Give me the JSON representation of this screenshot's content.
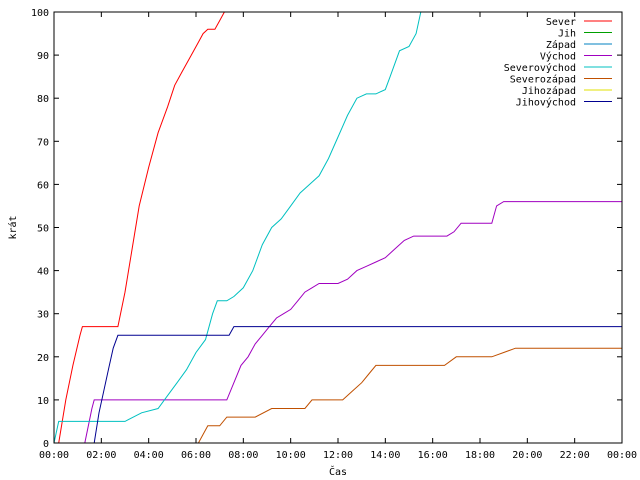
{
  "chart_data": {
    "type": "line",
    "title": "",
    "xlabel": "Čas",
    "ylabel": "krát",
    "xlim": [
      0,
      24
    ],
    "ylim": [
      0,
      100
    ],
    "x_ticks": [
      0,
      2,
      4,
      6,
      8,
      10,
      12,
      14,
      16,
      18,
      20,
      22,
      24
    ],
    "x_tick_labels": [
      "00:00",
      "02:00",
      "04:00",
      "06:00",
      "08:00",
      "10:00",
      "12:00",
      "14:00",
      "16:00",
      "18:00",
      "20:00",
      "22:00",
      "00:00"
    ],
    "y_ticks": [
      0,
      10,
      20,
      30,
      40,
      50,
      60,
      70,
      80,
      90,
      100
    ],
    "y_tick_labels": [
      "0",
      "10",
      "20",
      "30",
      "40",
      "50",
      "60",
      "70",
      "80",
      "90",
      "100"
    ],
    "legend_position": "top-right",
    "grid": false,
    "series": [
      {
        "name": "Sever",
        "color": "#ff0000",
        "x": [
          0.2,
          0.5,
          0.8,
          1.1,
          1.2,
          2.7,
          3.0,
          3.3,
          3.6,
          4.0,
          4.4,
          4.8,
          5.1,
          5.4,
          5.8,
          6.1,
          6.3,
          6.5,
          6.8,
          7.0,
          7.2
        ],
        "y": [
          0,
          10,
          18,
          25,
          27,
          27,
          35,
          45,
          55,
          64,
          72,
          78,
          83,
          86,
          90,
          93,
          95,
          96,
          96,
          98,
          100
        ]
      },
      {
        "name": "Jih",
        "color": "#00a000",
        "x": [],
        "y": []
      },
      {
        "name": "Západ",
        "color": "#0080c0",
        "x": [],
        "y": []
      },
      {
        "name": "Východ",
        "color": "#a000c0",
        "x": [
          1.3,
          1.6,
          1.7,
          3.0,
          4.0,
          7.3,
          7.6,
          7.9,
          8.2,
          8.5,
          8.8,
          9.1,
          9.4,
          9.7,
          10.0,
          10.3,
          10.6,
          10.9,
          11.2,
          12.0,
          12.4,
          12.8,
          13.2,
          13.6,
          14.0,
          14.4,
          14.8,
          15.2,
          16.0,
          16.6,
          16.9,
          17.2,
          18.0,
          18.5,
          18.7,
          19.0,
          24.0
        ],
        "y": [
          0,
          8,
          10,
          10,
          10,
          10,
          14,
          18,
          20,
          23,
          25,
          27,
          29,
          30,
          31,
          33,
          35,
          36,
          37,
          37,
          38,
          40,
          41,
          42,
          43,
          45,
          47,
          48,
          48,
          48,
          49,
          51,
          51,
          51,
          55,
          56,
          56
        ]
      },
      {
        "name": "Severovýchod",
        "color": "#00c0c0",
        "x": [
          0,
          0.2,
          1.0,
          2.0,
          3.0,
          3.7,
          4.4,
          4.8,
          5.2,
          5.6,
          6.0,
          6.4,
          6.7,
          6.9,
          7.3,
          7.6,
          8.0,
          8.4,
          8.8,
          9.2,
          9.6,
          10.0,
          10.4,
          10.8,
          11.2,
          11.6,
          12.0,
          12.4,
          12.8,
          13.2,
          13.6,
          14.0,
          14.2,
          14.6,
          15.0,
          15.3,
          15.5
        ],
        "y": [
          0,
          5,
          5,
          5,
          5,
          7,
          8,
          11,
          14,
          17,
          21,
          24,
          30,
          33,
          33,
          34,
          36,
          40,
          46,
          50,
          52,
          55,
          58,
          60,
          62,
          66,
          71,
          76,
          80,
          81,
          81,
          82,
          85,
          91,
          92,
          95,
          100
        ]
      },
      {
        "name": "Severozápad",
        "color": "#c05000",
        "x": [
          6.1,
          6.3,
          6.5,
          7.0,
          7.3,
          7.6,
          8.5,
          9.2,
          9.6,
          10.6,
          10.9,
          11.3,
          12.2,
          12.6,
          13.0,
          13.3,
          13.6,
          14.5,
          15.2,
          16.5,
          17.0,
          17.8,
          18.5,
          19.0,
          19.5,
          24.0
        ],
        "y": [
          0,
          2,
          4,
          4,
          6,
          6,
          6,
          8,
          8,
          8,
          10,
          10,
          10,
          12,
          14,
          16,
          18,
          18,
          18,
          18,
          20,
          20,
          20,
          21,
          22,
          22
        ]
      },
      {
        "name": "Jihozápad",
        "color": "#e0e000",
        "x": [],
        "y": []
      },
      {
        "name": "Jihovýchod",
        "color": "#000090",
        "x": [
          1.7,
          1.9,
          2.1,
          2.3,
          2.5,
          2.7,
          3.0,
          4.0,
          7.4,
          7.6,
          8.5,
          10.0,
          24.0
        ],
        "y": [
          0,
          7,
          12,
          17,
          22,
          25,
          25,
          25,
          25,
          27,
          27,
          27,
          27
        ]
      }
    ]
  }
}
